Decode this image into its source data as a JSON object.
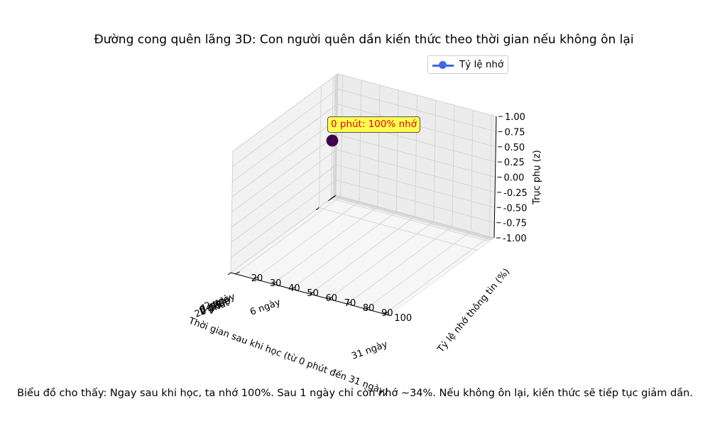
{
  "chart_data": {
    "type": "scatter",
    "title": "Đường cong quên lãng 3D: Con người quên dần kiến thức theo thời gian nếu không ôn lại",
    "caption": "Biểu đồ cho thấy: Ngay sau khi học, ta nhớ 100%. Sau 1 ngày chỉ còn nhớ ~34%. Nếu không ôn lại, kiến thức sẽ tiếp tục giảm dần.",
    "xlabel": "Thời gian sau khi học (từ 0 phút đến 31 ngày)",
    "ylabel": "Tỷ lệ nhớ thông tin (%)",
    "zlabel": "Trục phụ (z)",
    "x_tick_labels": [
      "0 phút",
      "20 phút",
      "1 giờ",
      "9 giờ",
      "1 ngày",
      "2 ngày",
      "6 ngày",
      "31 ngày"
    ],
    "y_ticks": [
      20,
      30,
      40,
      50,
      60,
      70,
      80,
      90,
      100
    ],
    "z_ticks": [
      "-1.00",
      "-0.75",
      "-0.50",
      "-0.25",
      "0.00",
      "0.25",
      "0.50",
      "0.75",
      "1.00"
    ],
    "zlim": [
      -1,
      1
    ],
    "grid": true,
    "legend_position": "top-right",
    "series": [
      {
        "name": "Tỷ lệ nhớ",
        "color": "#4169e1",
        "points": [
          {
            "x": "0 phút",
            "y": 100,
            "z": 0
          }
        ]
      }
    ],
    "highlight_point": {
      "x": "0 phút",
      "y": 100,
      "z": 0,
      "color": "#440154"
    },
    "annotation": {
      "text": "0 phút: 100% nhớ",
      "text_color": "#e8000b",
      "box_color": "#ffff4d"
    }
  }
}
